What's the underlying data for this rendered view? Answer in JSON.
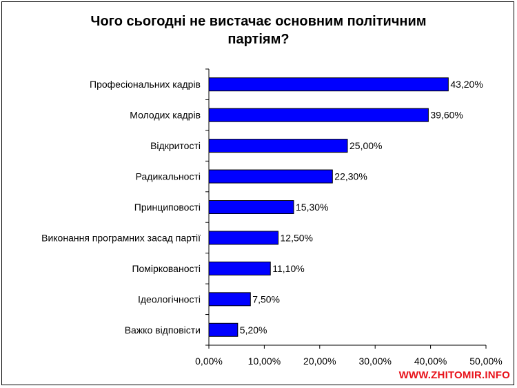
{
  "title_line1": "Чого сьогодні не вистачає основним політичним",
  "title_line2": "партіям?",
  "watermark": "WWW.ZHITOMIR.INFO",
  "chart_data": {
    "type": "bar",
    "orientation": "horizontal",
    "title": "Чого сьогодні не вистачає основним політичним партіям?",
    "categories": [
      "Професіональних кадрів",
      "Молодих кадрів",
      "Відкритості",
      "Радикальності",
      "Принциповості",
      "Виконання програмних засад партії",
      "Поміркованості",
      "Ідеологічності",
      "Важко відповісти"
    ],
    "values": [
      43.2,
      39.6,
      25.0,
      22.3,
      15.3,
      12.5,
      11.1,
      7.5,
      5.2
    ],
    "data_labels": [
      "43,20%",
      "39,60%",
      "25,00%",
      "22,30%",
      "15,30%",
      "12,50%",
      "11,10%",
      "7,50%",
      "5,20%"
    ],
    "xlim": [
      0,
      50
    ],
    "x_ticks": [
      "0,00%",
      "10,00%",
      "20,00%",
      "30,00%",
      "40,00%",
      "50,00%"
    ],
    "grid": false,
    "legend": "none",
    "bar_color": "#0000ff",
    "bar_edge_color": "#000000"
  }
}
